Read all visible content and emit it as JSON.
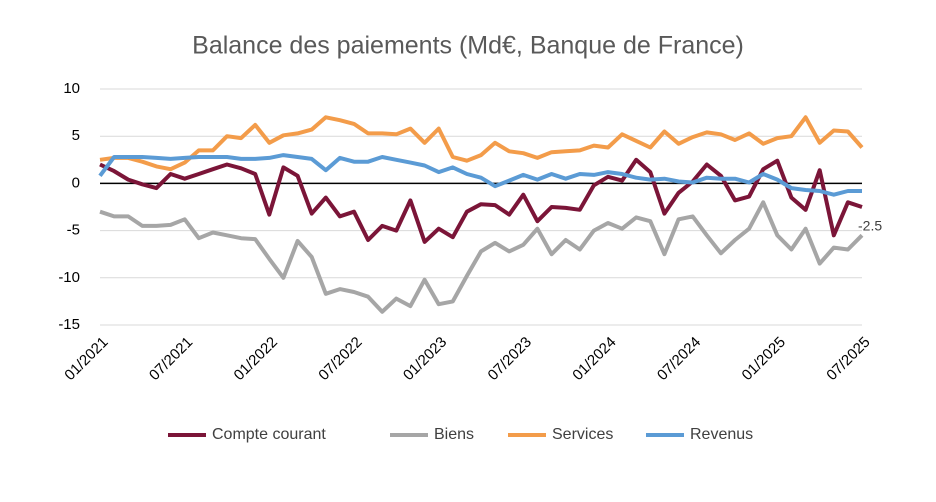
{
  "chart_data": {
    "type": "line",
    "title": "Balance des paiements (Md€, Banque de France)",
    "categories": [
      "01/2021",
      null,
      null,
      null,
      null,
      null,
      "07/2021",
      null,
      null,
      null,
      null,
      null,
      "01/2022",
      null,
      null,
      null,
      null,
      null,
      "07/2022",
      null,
      null,
      null,
      null,
      null,
      "01/2023",
      null,
      null,
      null,
      null,
      null,
      "07/2023",
      null,
      null,
      null,
      null,
      null,
      "01/2024",
      null,
      null,
      null,
      null,
      null,
      "07/2024",
      null,
      null,
      null,
      null,
      null,
      "01/2025",
      null,
      null,
      null,
      null,
      null,
      "07/2025"
    ],
    "series": [
      {
        "name": "Compte courant",
        "color": "#7b1538",
        "values": [
          2.0,
          1.3,
          0.4,
          -0.1,
          -0.5,
          1.0,
          0.5,
          1.0,
          1.5,
          2.0,
          1.6,
          1.0,
          -3.3,
          1.7,
          0.8,
          -3.2,
          -1.5,
          -3.5,
          -3.0,
          -6.0,
          -4.5,
          -5.0,
          -1.8,
          -6.2,
          -4.8,
          -5.7,
          -3.0,
          -2.2,
          -2.3,
          -3.3,
          -1.2,
          -4.0,
          -2.5,
          -2.6,
          -2.8,
          -0.2,
          0.7,
          0.3,
          2.5,
          1.2,
          -3.2,
          -1.0,
          0.2,
          2.0,
          0.8,
          -1.8,
          -1.4,
          1.5,
          2.4,
          -1.5,
          -2.8,
          1.4,
          -5.5,
          -2.0,
          -2.5
        ]
      },
      {
        "name": "Biens",
        "color": "#a6a6a6",
        "values": [
          -3.0,
          -3.5,
          -3.5,
          -4.5,
          -4.5,
          -4.4,
          -3.8,
          -5.8,
          -5.2,
          -5.5,
          -5.8,
          -5.9,
          -8.0,
          -10.0,
          -6.1,
          -7.8,
          -11.7,
          -11.2,
          -11.5,
          -12.0,
          -13.6,
          -12.2,
          -13.0,
          -10.2,
          -12.8,
          -12.5,
          -9.8,
          -7.2,
          -6.3,
          -7.2,
          -6.5,
          -4.8,
          -7.5,
          -6.0,
          -7.0,
          -5.0,
          -4.2,
          -4.8,
          -3.6,
          -4.0,
          -7.5,
          -3.8,
          -3.5,
          -5.5,
          -7.4,
          -6.0,
          -4.8,
          -2.0,
          -5.5,
          -7.0,
          -4.8,
          -8.5,
          -6.8,
          -7.0,
          -5.5
        ]
      },
      {
        "name": "Services",
        "color": "#f39c4a",
        "values": [
          2.5,
          2.7,
          2.7,
          2.3,
          1.8,
          1.5,
          2.2,
          3.5,
          3.5,
          5.0,
          4.8,
          6.2,
          4.3,
          5.1,
          5.3,
          5.7,
          7.0,
          6.7,
          6.3,
          5.3,
          5.3,
          5.2,
          5.8,
          4.3,
          5.8,
          2.8,
          2.4,
          3.0,
          4.3,
          3.4,
          3.2,
          2.7,
          3.3,
          3.4,
          3.5,
          4.0,
          3.8,
          5.2,
          4.5,
          3.8,
          5.5,
          4.2,
          4.9,
          5.4,
          5.2,
          4.6,
          5.3,
          4.2,
          4.8,
          5.0,
          7.0,
          4.3,
          5.6,
          5.5,
          3.8
        ]
      },
      {
        "name": "Revenus",
        "color": "#5b9bd5",
        "values": [
          0.8,
          2.8,
          2.8,
          2.8,
          2.7,
          2.6,
          2.7,
          2.8,
          2.8,
          2.8,
          2.6,
          2.6,
          2.7,
          3.0,
          2.8,
          2.6,
          1.4,
          2.7,
          2.3,
          2.3,
          2.8,
          2.5,
          2.2,
          1.9,
          1.2,
          1.7,
          1.0,
          0.6,
          -0.3,
          0.3,
          0.9,
          0.4,
          1.0,
          0.5,
          1.0,
          0.9,
          1.2,
          1.0,
          0.6,
          0.4,
          0.5,
          0.2,
          0.1,
          0.6,
          0.5,
          0.5,
          0.1,
          1.0,
          0.4,
          -0.5,
          -0.7,
          -0.8,
          -1.2,
          -0.8,
          -0.8
        ]
      }
    ],
    "ylim": [
      -15,
      10
    ],
    "yticks": [
      10,
      5,
      0,
      -5,
      -10,
      -15
    ],
    "grid": true,
    "legend": "bottom"
  }
}
